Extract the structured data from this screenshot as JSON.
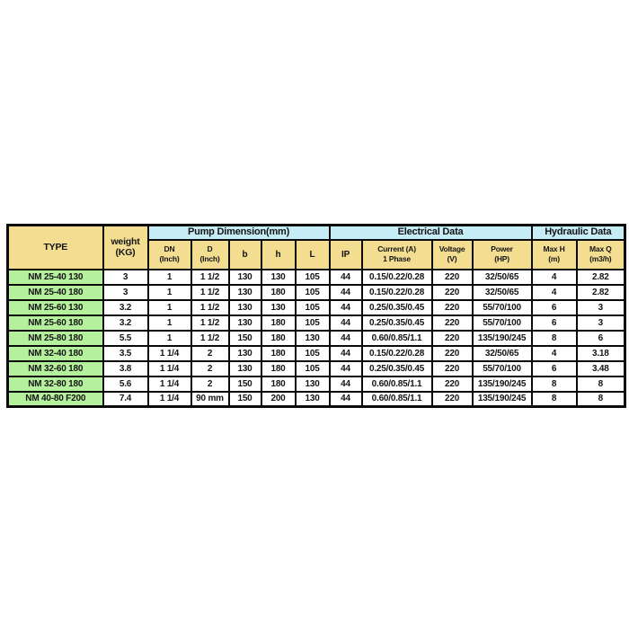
{
  "colors": {
    "header_yellow": "#f3dd90",
    "type_green": "#b5f09c",
    "group_blue": "#c6ecf6",
    "border": "#0a0a0a",
    "page_background": "#ffffff"
  },
  "table": {
    "corner_headers": [
      {
        "id": "type",
        "label": "TYPE"
      },
      {
        "id": "weight",
        "label": "weight\n(KG)"
      }
    ],
    "groups": [
      {
        "id": "pump-dimension",
        "label": "Pump Dimension(mm)",
        "span": 5
      },
      {
        "id": "electrical-data",
        "label": "Electrical Data",
        "span": 4
      },
      {
        "id": "hydraulic-data",
        "label": "Hydraulic Data",
        "span": 2
      }
    ],
    "sub_headers": [
      {
        "id": "dn",
        "label": "DN\n(Inch)"
      },
      {
        "id": "d",
        "label": "D\n(Inch)"
      },
      {
        "id": "b",
        "label": "b"
      },
      {
        "id": "h",
        "label": "h"
      },
      {
        "id": "l",
        "label": "L"
      },
      {
        "id": "ip",
        "label": "IP"
      },
      {
        "id": "current-1phase",
        "label": "Current (A)\n1 Phase"
      },
      {
        "id": "voltage",
        "label": "Voltage\n(V)"
      },
      {
        "id": "power",
        "label": "Power\n(HP)"
      },
      {
        "id": "max-h",
        "label": "Max H\n(m)"
      },
      {
        "id": "max-q",
        "label": "Max Q\n(m3/h)"
      }
    ],
    "column_ids": [
      "type",
      "weight",
      "dn",
      "d",
      "b",
      "h",
      "l",
      "ip",
      "current-1phase",
      "voltage",
      "power",
      "max-h",
      "max-q"
    ],
    "rows": [
      [
        "NM 25-40 130",
        "3",
        "1",
        "1 1/2",
        "130",
        "130",
        "105",
        "44",
        "0.15/0.22/0.28",
        "220",
        "32/50/65",
        "4",
        "2.82"
      ],
      [
        "NM 25-40 180",
        "3",
        "1",
        "1 1/2",
        "130",
        "180",
        "105",
        "44",
        "0.15/0.22/0.28",
        "220",
        "32/50/65",
        "4",
        "2.82"
      ],
      [
        "NM 25-60 130",
        "3.2",
        "1",
        "1 1/2",
        "130",
        "130",
        "105",
        "44",
        "0.25/0.35/0.45",
        "220",
        "55/70/100",
        "6",
        "3"
      ],
      [
        "NM 25-60 180",
        "3.2",
        "1",
        "1 1/2",
        "130",
        "180",
        "105",
        "44",
        "0.25/0.35/0.45",
        "220",
        "55/70/100",
        "6",
        "3"
      ],
      [
        "NM 25-80 180",
        "5.5",
        "1",
        "1 1/2",
        "150",
        "180",
        "130",
        "44",
        "0.60/0.85/1.1",
        "220",
        "135/190/245",
        "8",
        "6"
      ],
      [
        "NM 32-40 180",
        "3.5",
        "1 1/4",
        "2",
        "130",
        "180",
        "105",
        "44",
        "0.15/0.22/0.28",
        "220",
        "32/50/65",
        "4",
        "3.18"
      ],
      [
        "NM 32-60 180",
        "3.8",
        "1 1/4",
        "2",
        "130",
        "180",
        "105",
        "44",
        "0.25/0.35/0.45",
        "220",
        "55/70/100",
        "6",
        "3.48"
      ],
      [
        "NM 32-80 180",
        "5.6",
        "1 1/4",
        "2",
        "150",
        "180",
        "130",
        "44",
        "0.60/0.85/1.1",
        "220",
        "135/190/245",
        "8",
        "8"
      ],
      [
        "NM 40-80 F200",
        "7.4",
        "1 1/4",
        "90 mm",
        "150",
        "200",
        "130",
        "44",
        "0.60/0.85/1.1",
        "220",
        "135/190/245",
        "8",
        "8"
      ]
    ]
  }
}
